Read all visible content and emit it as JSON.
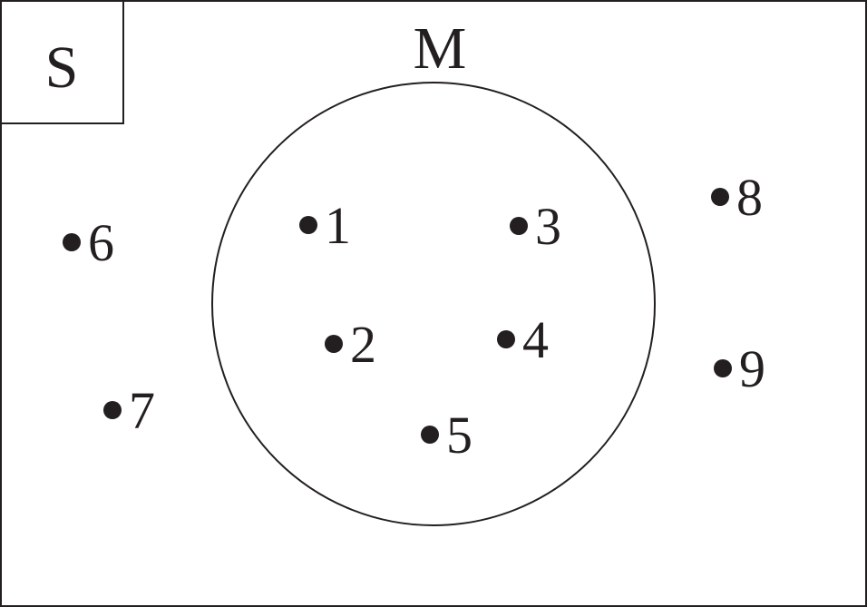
{
  "universal_set": {
    "label": "S"
  },
  "set": {
    "label": "M"
  },
  "elements_in_set": [
    "1",
    "2",
    "3",
    "4",
    "5"
  ],
  "elements_outside_set": [
    "6",
    "7",
    "8",
    "9"
  ],
  "colors": {
    "ink": "#231f20",
    "background": "#ffffff"
  }
}
